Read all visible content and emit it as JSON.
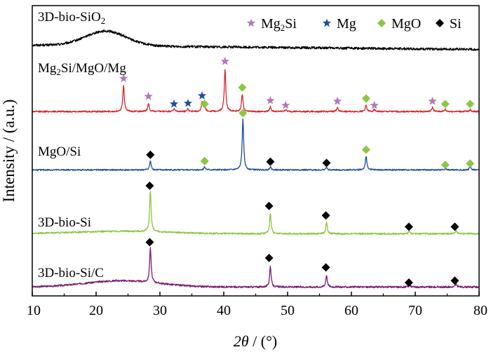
{
  "chart_data": {
    "type": "line",
    "title": "",
    "xlabel_italic": "2θ",
    "xlabel_unit": " / (°)",
    "ylabel": "Intensity / (a.u.)",
    "xlim": [
      10,
      80
    ],
    "xticks": [
      10,
      20,
      30,
      40,
      50,
      60,
      70,
      80
    ],
    "legend": {
      "placement": "top-right",
      "entries": [
        {
          "label_main": "Mg",
          "label_sub": "2",
          "label_tail": "Si",
          "marker": "star",
          "color": "#b07ab8"
        },
        {
          "label_main": "Mg",
          "label_sub": "",
          "label_tail": "",
          "marker": "star",
          "color": "#1f4e9c"
        },
        {
          "label_main": "MgO",
          "label_sub": "",
          "label_tail": "",
          "marker": "diamond",
          "color": "#8dc63f"
        },
        {
          "label_main": "Si",
          "label_sub": "",
          "label_tail": "",
          "marker": "diamond",
          "color": "#000000"
        }
      ]
    },
    "series": [
      {
        "name_main": "3D-bio-SiO",
        "name_sub": "2",
        "name_tail": "",
        "color": "#000000",
        "baseline": 0.5,
        "hump": {
          "center": 21.5,
          "width": 4.5,
          "height": 2.8
        },
        "slope": -0.012,
        "noise": 0.45,
        "peaks": [],
        "markers": []
      },
      {
        "name_main": "Mg",
        "name_sub": "2",
        "name_tail": "Si/MgO/Mg",
        "color": "#d6282b",
        "baseline": 0.3,
        "hump": null,
        "slope": 0,
        "noise": 0.22,
        "peaks": [
          {
            "x": 24.3,
            "h": 3.8
          },
          {
            "x": 28.2,
            "h": 1.2
          },
          {
            "x": 32.2,
            "h": 0.4
          },
          {
            "x": 34.4,
            "h": 0.4
          },
          {
            "x": 36.6,
            "h": 1.3
          },
          {
            "x": 37.0,
            "h": 0.9
          },
          {
            "x": 40.2,
            "h": 6.2
          },
          {
            "x": 42.9,
            "h": 2.5
          },
          {
            "x": 47.3,
            "h": 0.7
          },
          {
            "x": 49.7,
            "h": 0.3
          },
          {
            "x": 57.8,
            "h": 0.6
          },
          {
            "x": 62.3,
            "h": 0.9
          },
          {
            "x": 63.6,
            "h": 0.3
          },
          {
            "x": 72.7,
            "h": 0.6
          },
          {
            "x": 74.7,
            "h": 0.3
          },
          {
            "x": 78.6,
            "h": 0.3
          }
        ],
        "markers": [
          {
            "x": 24.3,
            "y": 5.1,
            "phase": "Mg2Si"
          },
          {
            "x": 28.2,
            "y": 2.5,
            "phase": "Mg2Si"
          },
          {
            "x": 32.2,
            "y": 1.4,
            "phase": "Mg"
          },
          {
            "x": 34.4,
            "y": 1.5,
            "phase": "Mg"
          },
          {
            "x": 36.6,
            "y": 2.6,
            "phase": "Mg"
          },
          {
            "x": 37.0,
            "y": 1.4,
            "phase": "MgO"
          },
          {
            "x": 40.2,
            "y": 7.6,
            "phase": "Mg2Si"
          },
          {
            "x": 42.9,
            "y": 3.8,
            "phase": "MgO"
          },
          {
            "x": 47.3,
            "y": 1.9,
            "phase": "Mg2Si"
          },
          {
            "x": 49.7,
            "y": 1.2,
            "phase": "Mg2Si"
          },
          {
            "x": 57.8,
            "y": 1.8,
            "phase": "Mg2Si"
          },
          {
            "x": 62.3,
            "y": 2.2,
            "phase": "MgO"
          },
          {
            "x": 63.6,
            "y": 1.2,
            "phase": "Mg2Si"
          },
          {
            "x": 72.7,
            "y": 1.8,
            "phase": "Mg2Si"
          },
          {
            "x": 74.7,
            "y": 1.4,
            "phase": "MgO"
          },
          {
            "x": 78.6,
            "y": 1.4,
            "phase": "MgO"
          }
        ]
      },
      {
        "name_main": "MgO/Si",
        "name_sub": "",
        "name_tail": "",
        "color": "#1f4e9c",
        "baseline": 0.3,
        "hump": null,
        "slope": 0,
        "noise": 0.22,
        "peaks": [
          {
            "x": 28.5,
            "h": 1.4
          },
          {
            "x": 37.0,
            "h": 0.5
          },
          {
            "x": 43.0,
            "h": 8.0
          },
          {
            "x": 47.3,
            "h": 0.5
          },
          {
            "x": 56.1,
            "h": 0.4
          },
          {
            "x": 62.3,
            "h": 2.2
          },
          {
            "x": 74.7,
            "h": 0.2
          },
          {
            "x": 78.6,
            "h": 0.6
          }
        ],
        "markers": [
          {
            "x": 28.5,
            "y": 2.7,
            "phase": "Si"
          },
          {
            "x": 37.0,
            "y": 1.7,
            "phase": "MgO"
          },
          {
            "x": 43.0,
            "y": 9.3,
            "phase": "MgO"
          },
          {
            "x": 47.3,
            "y": 1.6,
            "phase": "Si"
          },
          {
            "x": 56.1,
            "y": 1.4,
            "phase": "Si"
          },
          {
            "x": 62.3,
            "y": 3.5,
            "phase": "MgO"
          },
          {
            "x": 74.7,
            "y": 1.1,
            "phase": "MgO"
          },
          {
            "x": 78.6,
            "y": 1.3,
            "phase": "MgO"
          }
        ]
      },
      {
        "name_main": "3D-bio-Si",
        "name_sub": "",
        "name_tail": "",
        "color": "#8dc63f",
        "baseline": 0.3,
        "hump": {
          "center": 24,
          "width": 10,
          "height": 0.4
        },
        "slope": 0,
        "noise": 0.25,
        "peaks": [
          {
            "x": 28.5,
            "h": 6.5
          },
          {
            "x": 47.3,
            "h": 3.3
          },
          {
            "x": 56.1,
            "h": 1.8
          },
          {
            "x": 69.1,
            "h": 0.4
          },
          {
            "x": 76.4,
            "h": 0.5
          }
        ],
        "markers": [
          {
            "x": 28.4,
            "y": 7.9,
            "phase": "Si"
          },
          {
            "x": 47.1,
            "y": 4.7,
            "phase": "Si"
          },
          {
            "x": 56.0,
            "y": 3.2,
            "phase": "Si"
          },
          {
            "x": 69.0,
            "y": 1.4,
            "phase": "Si"
          },
          {
            "x": 76.2,
            "y": 1.4,
            "phase": "Si"
          }
        ]
      },
      {
        "name_main": "3D-bio-Si/C",
        "name_sub": "",
        "name_tail": "",
        "color": "#7b1a72",
        "baseline": 0.3,
        "hump": {
          "center": 24,
          "width": 8,
          "height": 1.0
        },
        "slope": 0,
        "noise": 0.28,
        "peaks": [
          {
            "x": 28.5,
            "h": 5.5
          },
          {
            "x": 47.3,
            "h": 3.3
          },
          {
            "x": 56.1,
            "h": 1.9
          },
          {
            "x": 69.1,
            "h": 0.3
          },
          {
            "x": 76.4,
            "h": 0.5
          }
        ],
        "markers": [
          {
            "x": 28.4,
            "y": 7.4,
            "phase": "Si"
          },
          {
            "x": 47.1,
            "y": 4.9,
            "phase": "Si"
          },
          {
            "x": 56.0,
            "y": 3.4,
            "phase": "Si"
          },
          {
            "x": 69.0,
            "y": 1.0,
            "phase": "Si"
          },
          {
            "x": 76.2,
            "y": 1.3,
            "phase": "Si"
          }
        ]
      }
    ]
  }
}
